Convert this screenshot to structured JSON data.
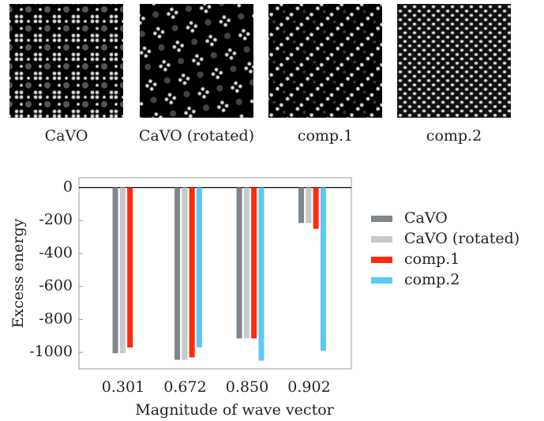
{
  "panels": [
    "CaVO",
    "CaVO (rotated)",
    "comp.1",
    "comp.2"
  ],
  "chart_data": {
    "type": "bar",
    "xlabel": "Magnitude of wave vector",
    "ylabel": "Excess energy",
    "categories": [
      "0.301",
      "0.672",
      "0.850",
      "0.902"
    ],
    "series": [
      {
        "name": "CaVO",
        "color": "#7f868c",
        "values": [
          -1005,
          -1045,
          -915,
          -215
        ]
      },
      {
        "name": "CaVO (rotated)",
        "color": "#c8c8c8",
        "values": [
          -1005,
          -1045,
          -915,
          -215
        ]
      },
      {
        "name": "comp.1",
        "color": "#ff2a0a",
        "values": [
          -970,
          -1030,
          -915,
          -250
        ]
      },
      {
        "name": "comp.2",
        "color": "#5bc8f5",
        "values": [
          null,
          -970,
          -1050,
          -990
        ]
      }
    ],
    "ylim": [
      -1100,
      60
    ],
    "yticks": [
      0,
      -200,
      -400,
      -600,
      -800,
      -1000
    ],
    "grid": false,
    "legend": "right"
  }
}
